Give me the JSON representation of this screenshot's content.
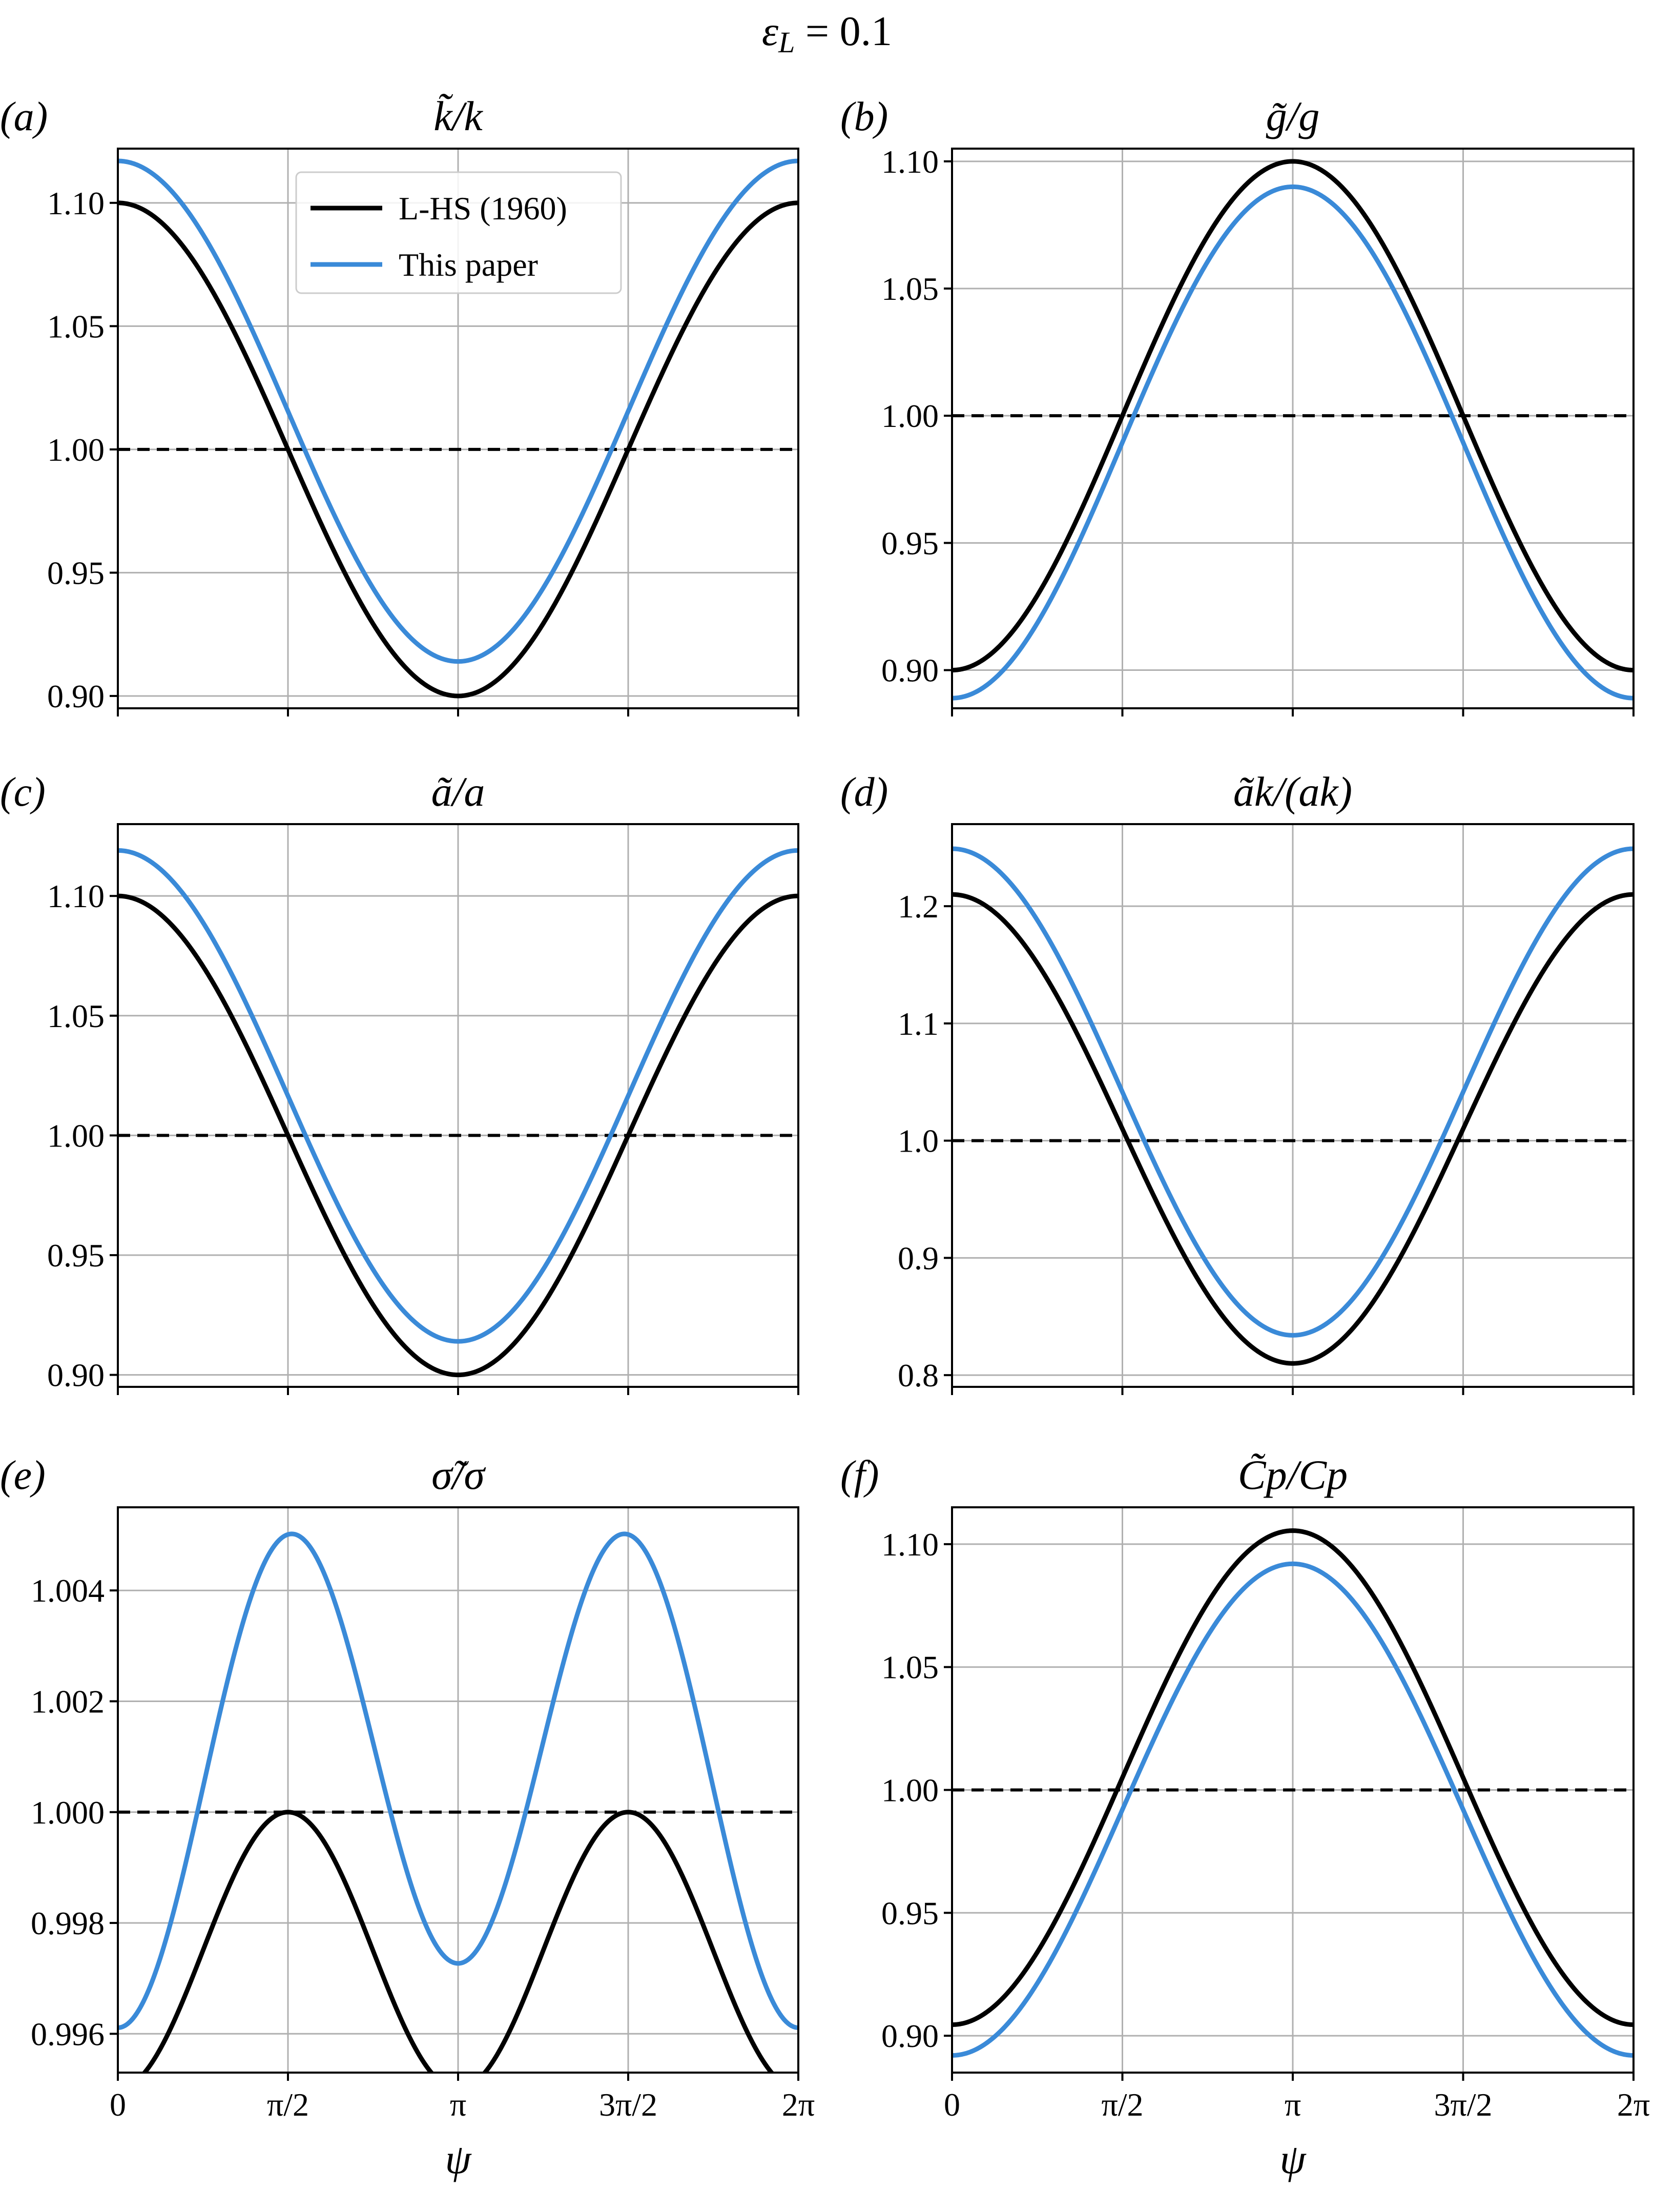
{
  "suptitle": "εL = 0.1",
  "colors": {
    "lhs": "#000000",
    "paper": "#3a8ad8",
    "grid": "#b0b0b0",
    "reference": "#000000"
  },
  "x_axis": {
    "label": "ψ",
    "range": [
      0,
      6.283185307
    ],
    "tick_values": [
      0,
      1.570796327,
      3.141592654,
      4.71238898,
      6.283185307
    ],
    "tick_labels": [
      "0",
      "π/2",
      "π",
      "3π/2",
      "2π"
    ]
  },
  "legend": {
    "panel": "a",
    "placement": "upper-center",
    "entries": [
      "L-HS (1960)",
      "This paper"
    ]
  },
  "chart_data": [
    {
      "id": "a",
      "label": "(a)",
      "title": "k̃/k",
      "type": "line",
      "ylim": [
        0.895,
        1.122
      ],
      "yticks": [
        0.9,
        0.95,
        1.0,
        1.05,
        1.1
      ],
      "ytick_labels": [
        "0.90",
        "0.95",
        "1.00",
        "1.05",
        "1.10"
      ],
      "reference_y": 1.0,
      "series": [
        {
          "name": "L-HS (1960)",
          "color": "#000000",
          "model": {
            "base": 1.0,
            "amp": 0.1,
            "harmonic": 1,
            "phase": 0
          }
        },
        {
          "name": "This paper",
          "color": "#3a8ad8",
          "model": {
            "base": 1.0155,
            "amp": 0.1015,
            "harmonic": 1,
            "phase": 0
          }
        }
      ]
    },
    {
      "id": "b",
      "label": "(b)",
      "title": "g̃/g",
      "type": "line",
      "ylim": [
        0.885,
        1.105
      ],
      "yticks": [
        0.9,
        0.95,
        1.0,
        1.05,
        1.1
      ],
      "ytick_labels": [
        "0.90",
        "0.95",
        "1.00",
        "1.05",
        "1.10"
      ],
      "reference_y": 1.0,
      "series": [
        {
          "name": "L-HS (1960)",
          "color": "#000000",
          "model": {
            "base": 1.0,
            "amp": -0.1,
            "harmonic": 1,
            "phase": 0
          }
        },
        {
          "name": "This paper",
          "color": "#3a8ad8",
          "model": {
            "base": 0.9895,
            "amp": -0.1005,
            "harmonic": 1,
            "phase": 0
          }
        }
      ]
    },
    {
      "id": "c",
      "label": "(c)",
      "title": "ã/a",
      "type": "line",
      "ylim": [
        0.895,
        1.13
      ],
      "yticks": [
        0.9,
        0.95,
        1.0,
        1.05,
        1.1
      ],
      "ytick_labels": [
        "0.90",
        "0.95",
        "1.00",
        "1.05",
        "1.10"
      ],
      "reference_y": 1.0,
      "series": [
        {
          "name": "L-HS (1960)",
          "color": "#000000",
          "model": {
            "base": 1.0,
            "amp": 0.1,
            "harmonic": 1,
            "phase": 0
          }
        },
        {
          "name": "This paper",
          "color": "#3a8ad8",
          "model": {
            "base": 1.0165,
            "amp": 0.1025,
            "harmonic": 1,
            "phase": 0
          }
        }
      ]
    },
    {
      "id": "d",
      "label": "(d)",
      "title": "ãk/(ak)",
      "type": "line",
      "ylim": [
        0.79,
        1.27
      ],
      "yticks": [
        0.8,
        0.9,
        1.0,
        1.1,
        1.2
      ],
      "ytick_labels": [
        "0.8",
        "0.9",
        "1.0",
        "1.1",
        "1.2"
      ],
      "reference_y": 1.0,
      "series": [
        {
          "name": "L-HS (1960)",
          "color": "#000000",
          "model": {
            "base": 1.01,
            "amp": 0.2,
            "harmonic": 1,
            "phase": 0
          }
        },
        {
          "name": "This paper",
          "color": "#3a8ad8",
          "model": {
            "base": 1.0415,
            "amp": 0.2075,
            "harmonic": 1,
            "phase": 0
          }
        }
      ]
    },
    {
      "id": "e",
      "label": "(e)",
      "title": "σ̃/σ",
      "type": "line",
      "ylim": [
        0.9953,
        1.0055
      ],
      "yticks": [
        0.996,
        0.998,
        1.0,
        1.002,
        1.004
      ],
      "ytick_labels": [
        "0.996",
        "0.998",
        "1.000",
        "1.002",
        "1.004"
      ],
      "reference_y": 1.0,
      "series": [
        {
          "name": "L-HS (1960)",
          "color": "#000000",
          "model": {
            "base": 0.9975,
            "amp": -0.0025,
            "harmonic": 2,
            "phase": 0
          }
        },
        {
          "name": "This paper",
          "color": "#3a8ad8",
          "model": {
            "base": 1.00085,
            "amp": -0.00416,
            "harmonic": 2,
            "phase": 0,
            "amp1": -0.00058
          }
        }
      ]
    },
    {
      "id": "f",
      "label": "(f)",
      "title": "C̃p/Cp",
      "type": "line",
      "ylim": [
        0.885,
        1.115
      ],
      "yticks": [
        0.9,
        0.95,
        1.0,
        1.05,
        1.1
      ],
      "ytick_labels": [
        "0.90",
        "0.95",
        "1.00",
        "1.05",
        "1.10"
      ],
      "reference_y": 1.0,
      "series": [
        {
          "name": "L-HS (1960)",
          "color": "#000000",
          "model": {
            "base": 1.005,
            "amp": -0.1005,
            "harmonic": 1,
            "phase": 0
          }
        },
        {
          "name": "This paper",
          "color": "#3a8ad8",
          "model": {
            "base": 0.992,
            "amp": -0.1,
            "harmonic": 1,
            "phase": 0
          }
        }
      ]
    }
  ]
}
